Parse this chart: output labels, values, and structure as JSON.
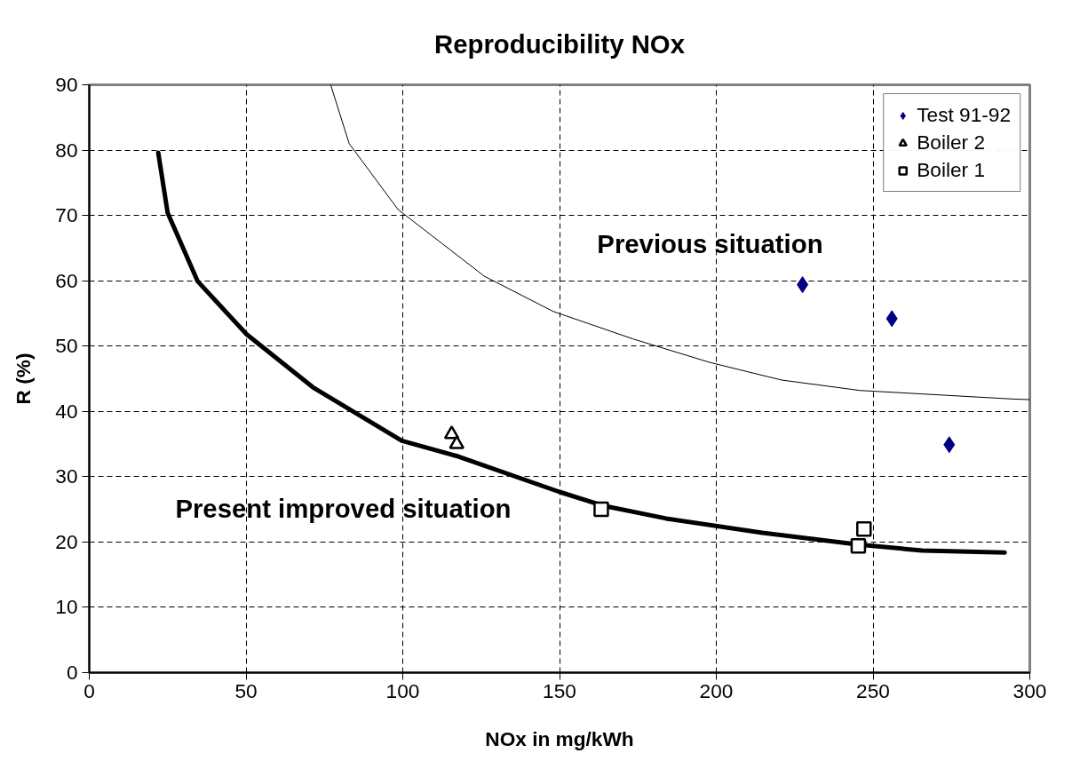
{
  "chart_data": {
    "type": "scatter",
    "title": "Reproducibility NOx",
    "xlabel": "NOx in mg/kWh",
    "ylabel": "R (%)",
    "xlim": [
      0,
      300
    ],
    "ylim": [
      0,
      90
    ],
    "xticks": [
      0,
      50,
      100,
      150,
      200,
      250,
      300
    ],
    "yticks": [
      0,
      10,
      20,
      30,
      40,
      50,
      60,
      70,
      80,
      90
    ],
    "grid": true,
    "legend": "top right",
    "annotations": [
      "Previous situation",
      "Present improved situation"
    ],
    "series": [
      {
        "name": "Test 91-92",
        "color": "#000080",
        "marker": "diamond",
        "x": [
          227.5,
          256,
          274.3
        ],
        "values": [
          59.4,
          54.2,
          34.9
        ]
      },
      {
        "name": "Boiler 2",
        "color": "#000000",
        "marker": "triangle",
        "x": [
          115.6,
          117.2
        ],
        "values": [
          36.5,
          35
        ]
      },
      {
        "name": "Boiler 1",
        "color": "#000000",
        "marker": "square",
        "x": [
          163.3,
          247.1,
          245.3
        ],
        "values": [
          25,
          22,
          19.4
        ]
      },
      {
        "type": "line",
        "color": "#000000",
        "line_style": "solid",
        "x": [
          22,
          25,
          34.6,
          50.2,
          71.3,
          99.7,
          117.7,
          149.8,
          163.6,
          184,
          214.7,
          245.3,
          265.7,
          292
        ],
        "values": [
          79.6,
          70.4,
          59.9,
          51.8,
          43.7,
          35.5,
          33.1,
          27.7,
          25.6,
          23.6,
          21.4,
          19.6,
          18.7,
          18.4
        ]
      },
      {
        "type": "line",
        "color": "#000000",
        "line_style": "solid",
        "x": [
          77,
          82.9,
          98.5,
          126,
          148,
          173.4,
          197.9,
          220.8,
          245.9,
          294.2,
          300
        ],
        "values": [
          90,
          81,
          70.9,
          60.7,
          55.3,
          51.1,
          47.5,
          44.8,
          43.2,
          41.9,
          41.8
        ]
      }
    ]
  }
}
